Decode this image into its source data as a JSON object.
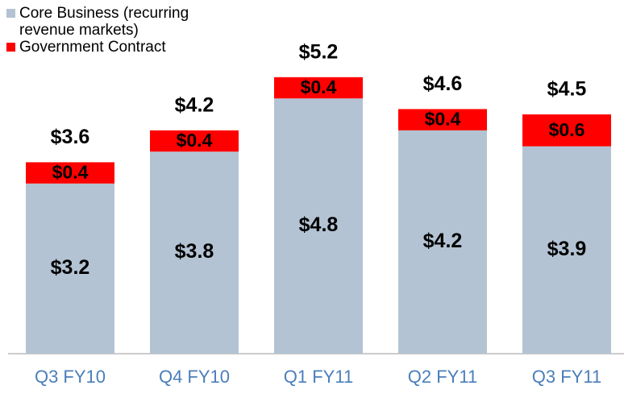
{
  "chart_data": {
    "type": "stacked_bar",
    "categories": [
      "Q3 FY10",
      "Q4 FY10",
      "Q1 FY11",
      "Q2 FY11",
      "Q3 FY11"
    ],
    "series": [
      {
        "name": "Core Business (recurring revenue markets)",
        "color": "#b3c3d3",
        "values": [
          3.2,
          3.8,
          4.8,
          4.2,
          3.9
        ],
        "value_labels": [
          "$3.2",
          "$3.8",
          "$4.8",
          "$4.2",
          "$3.9"
        ]
      },
      {
        "name": "Government Contract",
        "color": "#ff0000",
        "values": [
          0.4,
          0.4,
          0.4,
          0.4,
          0.6
        ],
        "value_labels": [
          "$0.4",
          "$0.4",
          "$0.4",
          "$0.4",
          "$0.6"
        ]
      }
    ],
    "totals": [
      3.6,
      4.2,
      5.2,
      4.6,
      4.5
    ],
    "total_labels": [
      "$3.6",
      "$4.2",
      "$5.2",
      "$4.6",
      "$4.5"
    ]
  }
}
